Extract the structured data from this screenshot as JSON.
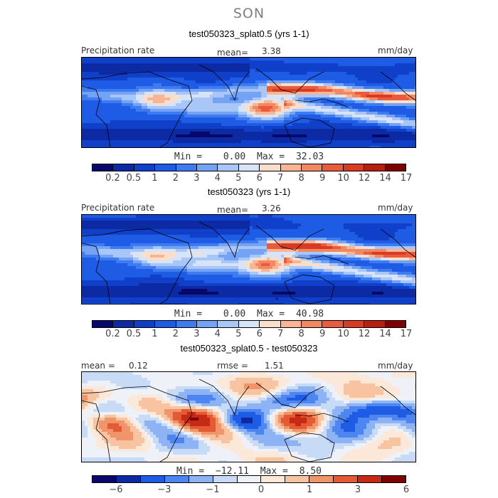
{
  "season": "SON",
  "colors": {
    "precip_levels": [
      "#08086b",
      "#0b2aa3",
      "#1040c9",
      "#1f5ce6",
      "#3f7bf0",
      "#74a2f5",
      "#a8c6f7",
      "#d7e4f7",
      "#f9dfc9",
      "#f7b595",
      "#f18863",
      "#e95b3c",
      "#d93a22",
      "#b5200f",
      "#800000"
    ],
    "diff_levels": [
      "#08086b",
      "#0b2aa3",
      "#1f5ce6",
      "#4d86f0",
      "#8db3f5",
      "#c8dbf6",
      "#eef2f8",
      "#fbe8d8",
      "#f7c3a1",
      "#f0946a",
      "#e45a35",
      "#c62a14",
      "#800000"
    ]
  },
  "chart_data": [
    {
      "type": "heatmap",
      "title": "test050323_splat0.5 (yrs 1-1)",
      "left_label": "Precipitation rate",
      "stat_label": "mean=",
      "stat_value": "3.38",
      "units": "mm/day",
      "min_label": "Min =",
      "min_value": "0.00",
      "max_label": "Max =",
      "max_value": "32.03",
      "colorbar_ticks": [
        "0.2",
        "0.5",
        "1",
        "2",
        "3",
        "4",
        "5",
        "6",
        "7",
        "8",
        "9",
        "10",
        "12",
        "14",
        "17"
      ]
    },
    {
      "type": "heatmap",
      "title": "test050323 (yrs 1-1)",
      "left_label": "Precipitation rate",
      "stat_label": "mean=",
      "stat_value": "3.26",
      "units": "mm/day",
      "min_label": "Min =",
      "min_value": "0.00",
      "max_label": "Max =",
      "max_value": "40.98",
      "colorbar_ticks": [
        "0.2",
        "0.5",
        "1",
        "2",
        "3",
        "4",
        "5",
        "6",
        "7",
        "8",
        "9",
        "10",
        "12",
        "14",
        "17"
      ]
    },
    {
      "type": "heatmap",
      "title": "test050323_splat0.5 - test050323",
      "left_label": "mean =",
      "left_value": "0.12",
      "stat_label": "rmse =",
      "stat_value": "1.51",
      "units": "mm/day",
      "min_label": "Min =",
      "min_value": "−12.11",
      "max_label": "Max =",
      "max_value": "8.50",
      "colorbar_ticks": [
        "−6",
        "−3",
        "−1",
        "0",
        "1",
        "3",
        "6"
      ]
    }
  ]
}
